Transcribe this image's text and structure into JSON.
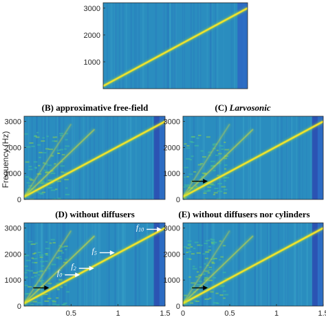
{
  "colors": {
    "background": "#2a8dbf",
    "background_edge": "#2d64c4",
    "dark_band": "#2c4fb0",
    "ridge": "#fde725",
    "ridge_halo": "#9bd93c",
    "arrow_black": "#000000",
    "arrow_white": "#ffffff"
  },
  "colormap": "parula",
  "ylabel": "Frequency (Hz)",
  "chart_data": [
    {
      "type": "heatmap",
      "id": "A",
      "title": "",
      "xlim": [
        0,
        1.5
      ],
      "ylim": [
        0,
        3200
      ],
      "yticks": [
        1000,
        2000,
        3000
      ],
      "xticks": [],
      "ridges": [
        {
          "name": "",
          "x": [
            0.0,
            1.5
          ],
          "y": [
            100,
            3000
          ],
          "strength": 1.0
        }
      ]
    },
    {
      "type": "heatmap",
      "id": "B",
      "title": "(B) approximative free-field",
      "xlim": [
        0,
        1.5
      ],
      "ylim": [
        0,
        3200
      ],
      "yticks": [
        0,
        1000,
        2000,
        3000
      ],
      "xticks": [],
      "ridges": [
        {
          "name": "",
          "x": [
            0.0,
            1.5
          ],
          "y": [
            100,
            3000
          ],
          "strength": 1.0
        },
        {
          "name": "",
          "x": [
            0.0,
            0.75
          ],
          "y": [
            100,
            2700
          ],
          "strength": 0.55
        },
        {
          "name": "",
          "x": [
            0.0,
            0.5
          ],
          "y": [
            100,
            2900
          ],
          "strength": 0.35
        }
      ],
      "dark_band_x": [
        1.38,
        1.44
      ]
    },
    {
      "type": "heatmap",
      "id": "C",
      "title": "(C) Larvosonic",
      "title_parts": {
        "prefix": "(C) ",
        "italic": "Larvosonic"
      },
      "xlim": [
        0,
        1.5
      ],
      "ylim": [
        0,
        3200
      ],
      "yticks": [
        0,
        1000,
        2000,
        3000
      ],
      "xticks": [],
      "ridges": [
        {
          "name": "",
          "x": [
            0.0,
            1.5
          ],
          "y": [
            100,
            3000
          ],
          "strength": 1.0
        },
        {
          "name": "",
          "x": [
            0.0,
            0.75
          ],
          "y": [
            100,
            2700
          ],
          "strength": 0.55
        },
        {
          "name": "",
          "x": [
            0.0,
            0.5
          ],
          "y": [
            100,
            2900
          ],
          "strength": 0.35
        }
      ],
      "dark_band_x": [
        1.38,
        1.44
      ],
      "arrows": [
        {
          "kind": "black",
          "x": 0.2,
          "y": 700
        }
      ]
    },
    {
      "type": "heatmap",
      "id": "D",
      "title": "(D) without diffusers",
      "xlim": [
        0,
        1.5
      ],
      "ylim": [
        0,
        3200
      ],
      "yticks": [
        0,
        1000,
        2000,
        3000
      ],
      "xticks": [
        0.5,
        1,
        1.5
      ],
      "ridges": [
        {
          "name": "",
          "x": [
            0.0,
            1.5
          ],
          "y": [
            100,
            3000
          ],
          "strength": 1.0
        },
        {
          "name": "",
          "x": [
            0.0,
            0.75
          ],
          "y": [
            100,
            2700
          ],
          "strength": 0.6
        },
        {
          "name": "",
          "x": [
            0.0,
            0.5
          ],
          "y": [
            100,
            2900
          ],
          "strength": 0.4
        }
      ],
      "dark_band_x": [
        1.38,
        1.44
      ],
      "arrows": [
        {
          "kind": "black",
          "x": 0.2,
          "y": 700
        },
        {
          "kind": "white",
          "label": "f0",
          "x": 0.58,
          "y": 1200
        },
        {
          "kind": "white",
          "label": "f2",
          "x": 0.73,
          "y": 1450
        },
        {
          "kind": "white",
          "label": "f5",
          "x": 0.95,
          "y": 2050
        },
        {
          "kind": "white",
          "label": "f10",
          "x": 1.45,
          "y": 2950
        }
      ]
    },
    {
      "type": "heatmap",
      "id": "E",
      "title": "(E) without diffusers nor cylinders",
      "xlim": [
        0,
        1.5
      ],
      "ylim": [
        0,
        3200
      ],
      "yticks": [
        0,
        1000,
        2000,
        3000
      ],
      "xticks": [
        0,
        0.5,
        1,
        1.5
      ],
      "ridges": [
        {
          "name": "",
          "x": [
            0.0,
            1.5
          ],
          "y": [
            100,
            3000
          ],
          "strength": 1.0
        },
        {
          "name": "",
          "x": [
            0.0,
            0.75
          ],
          "y": [
            100,
            2700
          ],
          "strength": 0.55
        },
        {
          "name": "",
          "x": [
            0.0,
            0.5
          ],
          "y": [
            100,
            2900
          ],
          "strength": 0.35
        }
      ],
      "dark_band_x": [
        1.38,
        1.44
      ],
      "arrows": [
        {
          "kind": "black",
          "x": 0.2,
          "y": 700
        }
      ]
    }
  ]
}
